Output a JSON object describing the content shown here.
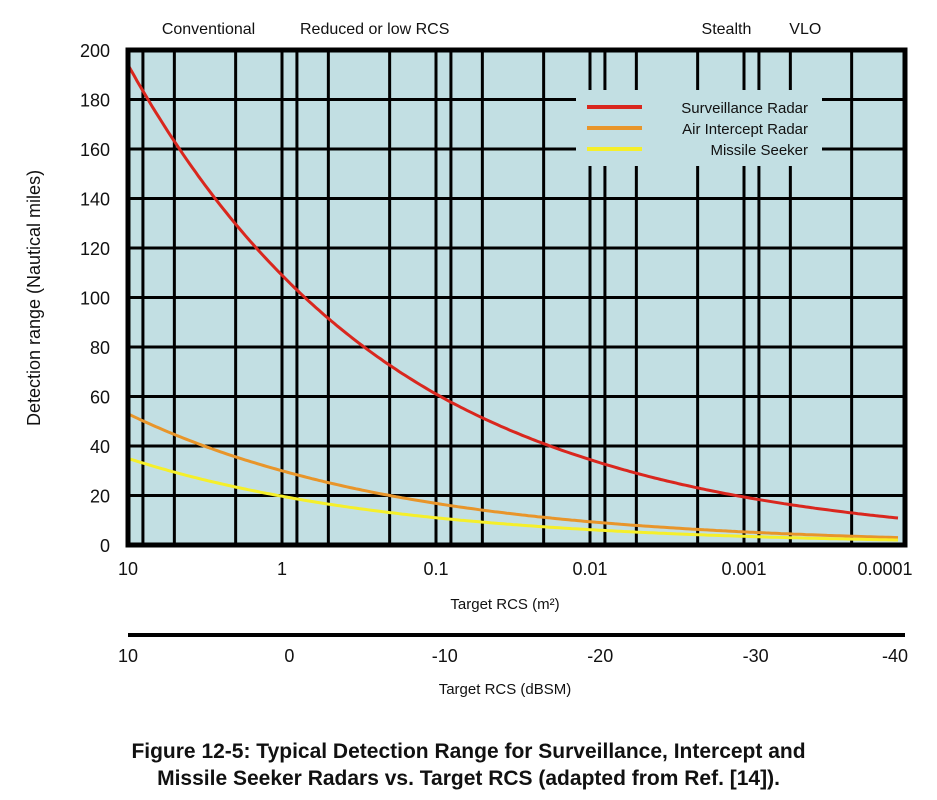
{
  "chart_data": {
    "type": "line",
    "title": "",
    "caption_line1": "Figure 12-5: Typical Detection Range for Surveillance, Intercept and",
    "caption_line2": "Missile Seeker Radars vs. Target RCS (adapted from Ref. [14]).",
    "xlabel": "Target RCS (m²)",
    "xlabel2": "Target RCS (dBSM)",
    "ylabel": "Detection range (Nautical miles)",
    "xscale": "log",
    "xlim": [
      10,
      0.0001
    ],
    "ylim": [
      0,
      200
    ],
    "x_ticks": [
      10,
      1,
      0.1,
      0.01,
      0.001,
      0.0001
    ],
    "x_tick_labels": [
      "10",
      "1",
      "0.1",
      "0.01",
      "0.001",
      "0.0001"
    ],
    "x2_ticks": [
      10,
      0,
      -10,
      -20,
      -30,
      -40
    ],
    "x2_tick_labels": [
      "10",
      "0",
      "-10",
      "-20",
      "-30",
      "-40"
    ],
    "y_ticks": [
      0,
      20,
      40,
      60,
      80,
      100,
      120,
      140,
      160,
      180,
      200
    ],
    "y_tick_labels": [
      "0",
      "20",
      "40",
      "60",
      "80",
      "100",
      "120",
      "140",
      "160",
      "180",
      "200"
    ],
    "grid": true,
    "x_gridlines": [
      8,
      5,
      2,
      1,
      0.8,
      0.5,
      0.2,
      0.1,
      0.08,
      0.05,
      0.02,
      0.01,
      0.008,
      0.005,
      0.002,
      0.001,
      0.0008,
      0.0005,
      0.0002
    ],
    "background_color": "#c2dfe3",
    "legend_position": "top-right",
    "category_annotations": [
      {
        "label": "Conventional",
        "at": 3
      },
      {
        "label": "Reduced or low RCS",
        "at": 0.25
      },
      {
        "label": "Stealth",
        "at": 0.0013
      },
      {
        "label": "VLO",
        "at": 0.0004
      }
    ],
    "series": [
      {
        "name": "Surveillance Radar",
        "color": "#d9271e",
        "x": [
          10,
          1,
          0.1,
          0.01,
          0.001,
          0.0001
        ],
        "y": [
          194,
          109,
          61,
          34.5,
          19.4,
          10.9
        ]
      },
      {
        "name": "Air Intercept Radar",
        "color": "#e8952a",
        "x": [
          10,
          1,
          0.1,
          0.01,
          0.001,
          0.0001
        ],
        "y": [
          53,
          30,
          16.8,
          9.4,
          5.3,
          3
        ]
      },
      {
        "name": "Missile Seeker",
        "color": "#f5ef2a",
        "x": [
          10,
          1,
          0.1,
          0.01,
          0.001,
          0.0001
        ],
        "y": [
          35,
          19.7,
          11,
          6.2,
          3.5,
          2
        ]
      }
    ]
  }
}
